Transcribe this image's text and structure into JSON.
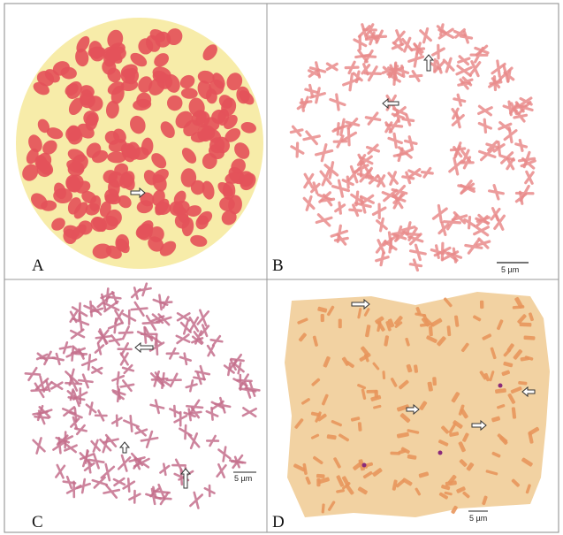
{
  "panels": [
    {
      "label": "A"
    },
    {
      "label": "B",
      "scale_bar": "5 µm"
    },
    {
      "label": "C",
      "scale_bar": "5 µm"
    },
    {
      "label": "D",
      "scale_bar": "5 µm"
    }
  ]
}
